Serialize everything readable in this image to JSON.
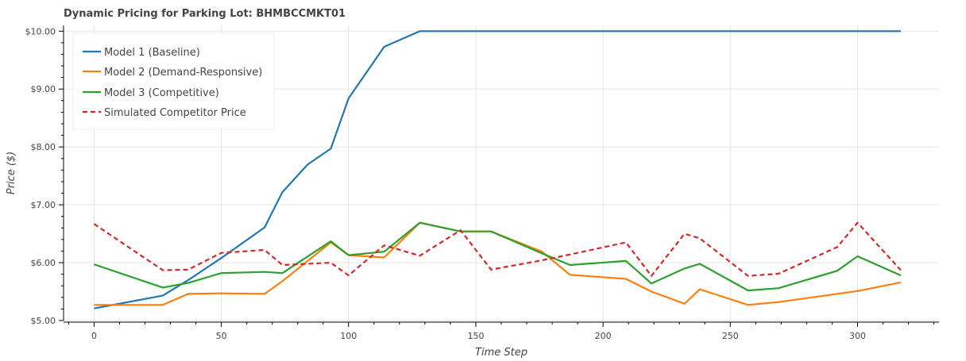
{
  "chart_data": {
    "type": "line",
    "title": "Dynamic Pricing for Parking Lot: BHMBCCMKT01",
    "xlabel": "Time Step",
    "ylabel": "Price ($)",
    "xlim": [
      -12,
      332
    ],
    "ylim": [
      5.0,
      10.1
    ],
    "xticks": [
      0,
      50,
      100,
      150,
      200,
      250,
      300
    ],
    "xtick_labels": [
      "0",
      "50",
      "100",
      "150",
      "200",
      "250",
      "300"
    ],
    "yticks": [
      5,
      6,
      7,
      8,
      9,
      10
    ],
    "ytick_labels": [
      "$5.00",
      "$6.00",
      "$7.00",
      "$8.00",
      "$9.00",
      "$10.00"
    ],
    "grid": true,
    "legend_position": "top-left",
    "series": [
      {
        "name": "Model 1 (Baseline)",
        "color": "#1f77b4",
        "dash": "solid",
        "x": [
          0,
          27,
          37,
          50,
          67,
          74,
          84,
          93,
          100,
          114,
          128,
          140,
          150,
          190,
          210,
          232,
          250,
          300,
          317
        ],
        "y": [
          5.21,
          5.43,
          5.7,
          6.08,
          6.61,
          7.22,
          7.7,
          7.97,
          8.84,
          9.73,
          10.0,
          10.0,
          10.0,
          10.0,
          10.0,
          10.0,
          10.0,
          10.0,
          10.0
        ]
      },
      {
        "name": "Model 2 (Demand-Responsive)",
        "color": "#ff7f0e",
        "dash": "solid",
        "x": [
          0,
          27,
          37,
          50,
          67,
          74,
          93,
          100,
          114,
          128,
          144,
          156,
          176,
          187,
          209,
          219,
          232,
          238,
          257,
          269,
          300,
          317
        ],
        "y": [
          5.27,
          5.27,
          5.46,
          5.47,
          5.46,
          5.68,
          6.35,
          6.13,
          6.09,
          6.69,
          6.54,
          6.54,
          6.19,
          5.79,
          5.72,
          5.5,
          5.29,
          5.54,
          5.27,
          5.32,
          5.51,
          5.66
        ]
      },
      {
        "name": "Model 3 (Competitive)",
        "color": "#2ca02c",
        "dash": "solid",
        "x": [
          0,
          27,
          37,
          50,
          67,
          74,
          93,
          100,
          114,
          128,
          144,
          156,
          176,
          187,
          209,
          219,
          232,
          238,
          257,
          269,
          292,
          300,
          317
        ],
        "y": [
          5.97,
          5.57,
          5.65,
          5.82,
          5.84,
          5.82,
          6.37,
          6.13,
          6.19,
          6.69,
          6.54,
          6.54,
          6.16,
          5.96,
          6.03,
          5.64,
          5.9,
          5.98,
          5.52,
          5.56,
          5.86,
          6.11,
          5.78
        ]
      },
      {
        "name": "Simulated Competitor Price",
        "color": "#d62728",
        "dash": "dashed",
        "x": [
          0,
          27,
          37,
          50,
          67,
          74,
          93,
          100,
          114,
          128,
          144,
          156,
          176,
          187,
          209,
          219,
          232,
          238,
          257,
          269,
          292,
          300,
          317
        ],
        "y": [
          6.67,
          5.87,
          5.88,
          6.17,
          6.22,
          5.96,
          6.0,
          5.78,
          6.3,
          6.12,
          6.56,
          5.88,
          6.04,
          6.14,
          6.35,
          5.77,
          6.5,
          6.42,
          5.77,
          5.81,
          6.27,
          6.69,
          5.87
        ]
      }
    ]
  }
}
